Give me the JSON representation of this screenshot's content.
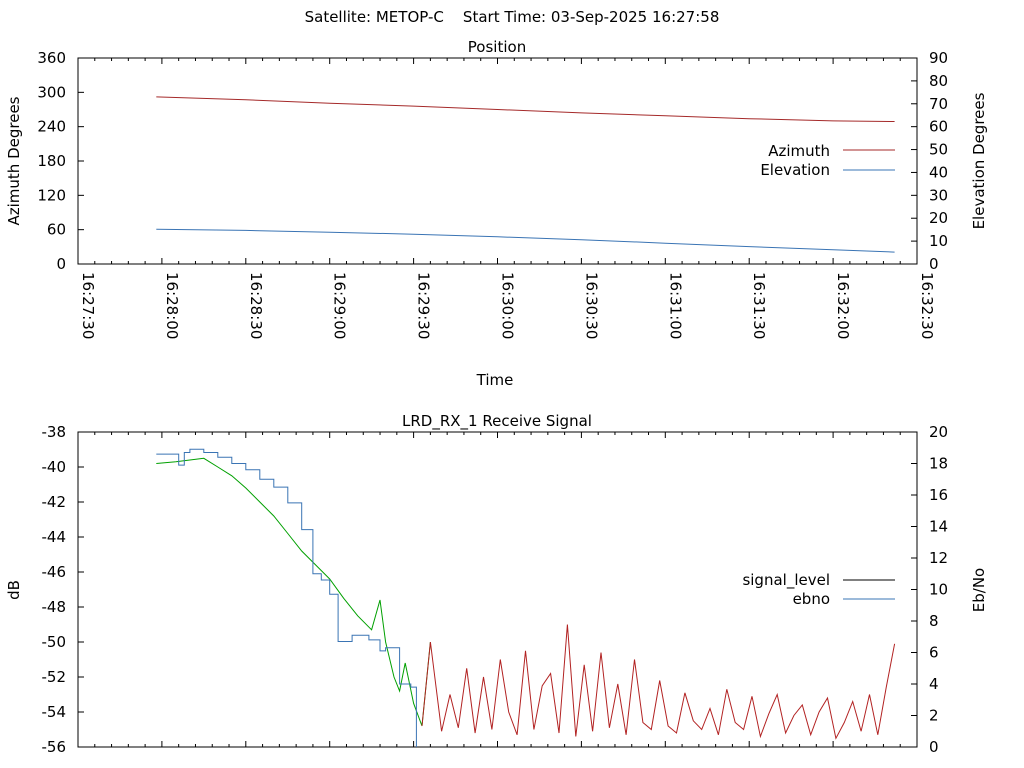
{
  "page_title": "Satellite: METOP-C    Start Time: 03-Sep-2025 16:27:58",
  "colors": {
    "azimuth": "#a52a2a",
    "elevation": "#3a74b4",
    "signal_level": "#000000",
    "ebno": "#3a74b4",
    "signal_trace_green": "#00a000",
    "signal_trace_red": "#b22222"
  },
  "chart_data": [
    {
      "type": "line",
      "title": "Position",
      "xlabel": "Time",
      "ylabel": "Azimuth Degrees",
      "y2label": "Elevation Degrees",
      "xlim": [
        "16:27:30",
        "16:32:30"
      ],
      "ylim": [
        0,
        360
      ],
      "y2lim": [
        0,
        90
      ],
      "x_ticks": [
        "16:27:30",
        "16:28:00",
        "16:28:30",
        "16:29:00",
        "16:29:30",
        "16:30:00",
        "16:30:30",
        "16:31:00",
        "16:31:30",
        "16:32:00",
        "16:32:30"
      ],
      "y_ticks": [
        "0",
        "60",
        "120",
        "180",
        "240",
        "300",
        "360"
      ],
      "y2_ticks": [
        "0",
        "10",
        "20",
        "30",
        "40",
        "50",
        "60",
        "70",
        "80",
        "90"
      ],
      "grid": false,
      "legend_position": "right",
      "series": [
        {
          "name": "Azimuth",
          "axis": "y1",
          "x": [
            "16:27:58",
            "16:28:30",
            "16:29:00",
            "16:29:30",
            "16:30:00",
            "16:30:30",
            "16:31:00",
            "16:31:30",
            "16:32:00",
            "16:32:22"
          ],
          "values": [
            292,
            287,
            281,
            276,
            270,
            264,
            259,
            254,
            250,
            249
          ]
        },
        {
          "name": "Elevation",
          "axis": "y2",
          "x": [
            "16:27:58",
            "16:28:30",
            "16:29:00",
            "16:29:30",
            "16:30:00",
            "16:30:30",
            "16:31:00",
            "16:31:30",
            "16:32:00",
            "16:32:22"
          ],
          "values": [
            15.2,
            14.7,
            13.9,
            13.0,
            11.9,
            10.6,
            9.1,
            7.6,
            6.2,
            5.2
          ]
        }
      ]
    },
    {
      "type": "line",
      "title": "LRD_RX_1 Receive Signal",
      "ylabel": "dB",
      "y2label": "Eb/No",
      "xlim": [
        "16:27:30",
        "16:32:30"
      ],
      "ylim": [
        -56,
        -38
      ],
      "y2lim": [
        0,
        20
      ],
      "y_ticks": [
        "-56",
        "-54",
        "-52",
        "-50",
        "-48",
        "-46",
        "-44",
        "-42",
        "-40",
        "-38"
      ],
      "y2_ticks": [
        "0",
        "2",
        "4",
        "6",
        "8",
        "10",
        "12",
        "14",
        "16",
        "18",
        "20"
      ],
      "grid": false,
      "legend_position": "right",
      "series": [
        {
          "name": "signal_level",
          "axis": "y1",
          "trace_colors_before_after": [
            "#00a000",
            "#b22222"
          ],
          "switch_time": "16:29:36",
          "x": [
            "16:27:58",
            "16:28:05",
            "16:28:10",
            "16:28:15",
            "16:28:20",
            "16:28:25",
            "16:28:30",
            "16:28:35",
            "16:28:40",
            "16:28:45",
            "16:28:50",
            "16:28:55",
            "16:29:00",
            "16:29:05",
            "16:29:10",
            "16:29:15",
            "16:29:18",
            "16:29:20",
            "16:29:23",
            "16:29:25",
            "16:29:27",
            "16:29:30",
            "16:29:33",
            "16:29:36",
            "16:29:40",
            "16:29:43",
            "16:29:46",
            "16:29:49",
            "16:29:52",
            "16:29:55",
            "16:29:58",
            "16:30:01",
            "16:30:04",
            "16:30:07",
            "16:30:10",
            "16:30:13",
            "16:30:16",
            "16:30:19",
            "16:30:22",
            "16:30:25",
            "16:30:28",
            "16:30:31",
            "16:30:34",
            "16:30:37",
            "16:30:40",
            "16:30:43",
            "16:30:46",
            "16:30:49",
            "16:30:52",
            "16:30:55",
            "16:30:58",
            "16:31:01",
            "16:31:04",
            "16:31:07",
            "16:31:10",
            "16:31:13",
            "16:31:16",
            "16:31:19",
            "16:31:22",
            "16:31:25",
            "16:31:28",
            "16:31:31",
            "16:31:34",
            "16:31:37",
            "16:31:40",
            "16:31:43",
            "16:31:46",
            "16:31:49",
            "16:31:52",
            "16:31:55",
            "16:31:58",
            "16:32:01",
            "16:32:04",
            "16:32:07",
            "16:32:10",
            "16:32:13",
            "16:32:16",
            "16:32:19",
            "16:32:22"
          ],
          "values": [
            -39.8,
            -39.7,
            -39.6,
            -39.5,
            -40.0,
            -40.5,
            -41.2,
            -42.0,
            -42.8,
            -43.8,
            -44.8,
            -45.6,
            -46.4,
            -47.5,
            -48.5,
            -49.3,
            -47.6,
            -50.0,
            -52.0,
            -52.8,
            -51.2,
            -53.5,
            -54.8,
            -50.0,
            -55.1,
            -53.0,
            -54.9,
            -51.5,
            -55.2,
            -52.0,
            -55.0,
            -51.0,
            -54.0,
            -55.3,
            -50.5,
            -55.0,
            -52.5,
            -51.8,
            -55.2,
            -49.0,
            -55.4,
            -51.3,
            -55.1,
            -50.6,
            -54.9,
            -52.4,
            -55.3,
            -51.0,
            -54.6,
            -55.0,
            -52.2,
            -54.8,
            -55.2,
            -52.9,
            -54.5,
            -55.0,
            -53.8,
            -55.3,
            -52.7,
            -54.6,
            -55.0,
            -53.1,
            -55.4,
            -54.1,
            -53.0,
            -55.2,
            -54.2,
            -53.6,
            -55.3,
            -54.0,
            -53.2,
            -55.5,
            -54.6,
            -53.4,
            -55.1,
            -53.0,
            -55.3,
            -52.6,
            -50.1
          ]
        },
        {
          "name": "ebno",
          "axis": "y2",
          "x": [
            "16:27:58",
            "16:28:03",
            "16:28:06",
            "16:28:08",
            "16:28:10",
            "16:28:15",
            "16:28:20",
            "16:28:25",
            "16:28:30",
            "16:28:35",
            "16:28:40",
            "16:28:45",
            "16:28:50",
            "16:28:54",
            "16:28:57",
            "16:29:00",
            "16:29:03",
            "16:29:08",
            "16:29:14",
            "16:29:18",
            "16:29:20",
            "16:29:25",
            "16:29:29",
            "16:29:31"
          ],
          "values": [
            18.6,
            18.6,
            17.9,
            18.7,
            18.9,
            18.7,
            18.4,
            18.0,
            17.6,
            17.0,
            16.5,
            15.5,
            13.8,
            11.0,
            10.6,
            9.7,
            6.7,
            7.1,
            6.8,
            6.1,
            6.3,
            4.0,
            3.8,
            0
          ]
        }
      ]
    }
  ]
}
